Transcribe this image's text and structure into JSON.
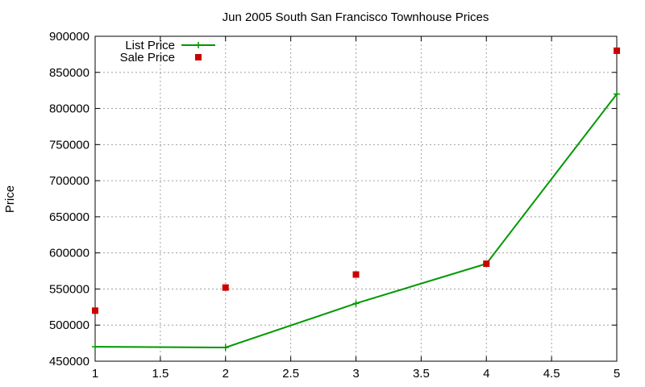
{
  "chart_data": {
    "type": "line",
    "title": "Jun 2005 South San Francisco Townhouse Prices",
    "xlabel": "",
    "ylabel": "Price",
    "xlim": [
      1,
      5
    ],
    "ylim": [
      450000,
      900000
    ],
    "xticks": [
      1,
      1.5,
      2,
      2.5,
      3,
      3.5,
      4,
      4.5,
      5
    ],
    "xtick_labels": [
      "1",
      "1.5",
      "2",
      "2.5",
      "3",
      "3.5",
      "4",
      "4.5",
      "5"
    ],
    "yticks": [
      450000,
      500000,
      550000,
      600000,
      650000,
      700000,
      750000,
      800000,
      850000,
      900000
    ],
    "ytick_labels": [
      "450000",
      "500000",
      "550000",
      "600000",
      "650000",
      "700000",
      "750000",
      "800000",
      "850000",
      "900000"
    ],
    "grid": true,
    "legend_position": "top-left",
    "series": [
      {
        "name": "List Price",
        "style": "linespoints",
        "marker": "plus",
        "color": "#009900",
        "x": [
          1,
          2,
          3,
          4,
          5
        ],
        "y": [
          470000,
          469000,
          530000,
          585000,
          820000
        ]
      },
      {
        "name": "Sale Price",
        "style": "points",
        "marker": "square",
        "color": "#cc0000",
        "x": [
          1,
          2,
          3,
          4,
          5
        ],
        "y": [
          520000,
          552000,
          570000,
          585000,
          880000
        ]
      }
    ]
  }
}
